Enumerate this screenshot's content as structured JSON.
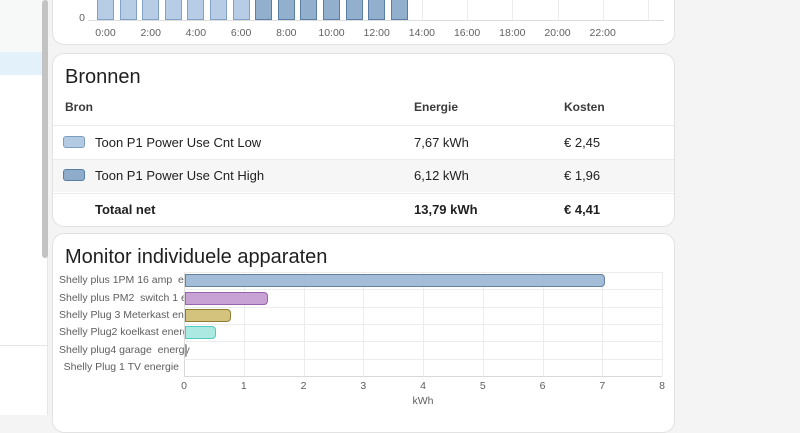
{
  "sidebar": {
    "scrollbar": true
  },
  "hourly_chart": {
    "chart_data": {
      "type": "bar",
      "note": "hourly energy usage, bars clipped at top of viewport",
      "x_tick_labels": [
        "0:00",
        "2:00",
        "4:00",
        "6:00",
        "8:00",
        "10:00",
        "12:00",
        "14:00",
        "16:00",
        "18:00",
        "20:00",
        "22:00"
      ],
      "y_tick_label": "0",
      "bars": [
        {
          "hour": "0:00",
          "tariff": "low"
        },
        {
          "hour": "1:00",
          "tariff": "low"
        },
        {
          "hour": "2:00",
          "tariff": "low"
        },
        {
          "hour": "3:00",
          "tariff": "low"
        },
        {
          "hour": "4:00",
          "tariff": "low"
        },
        {
          "hour": "5:00",
          "tariff": "low"
        },
        {
          "hour": "6:00",
          "tariff": "low"
        },
        {
          "hour": "7:00",
          "tariff": "high"
        },
        {
          "hour": "8:00",
          "tariff": "high"
        },
        {
          "hour": "9:00",
          "tariff": "high"
        },
        {
          "hour": "10:00",
          "tariff": "high"
        },
        {
          "hour": "11:00",
          "tariff": "high"
        },
        {
          "hour": "12:00",
          "tariff": "high"
        },
        {
          "hour": "13:00",
          "tariff": "high"
        }
      ],
      "colors": {
        "low": {
          "fill": "#b6cde5",
          "border": "#81a2c6"
        },
        "high": {
          "fill": "#92afcd",
          "border": "#5a7ea6"
        }
      }
    }
  },
  "sources_card": {
    "title": "Bronnen",
    "columns": {
      "bron": "Bron",
      "energie": "Energie",
      "kosten": "Kosten"
    },
    "rows": [
      {
        "label": "Toon P1 Power Use Cnt Low",
        "energy": "7,67 kWh",
        "cost": "€ 2,45",
        "swatch": "low",
        "total": false,
        "zebra": false
      },
      {
        "label": "Toon P1 Power Use Cnt High",
        "energy": "6,12 kWh",
        "cost": "€ 1,96",
        "swatch": "high",
        "total": false,
        "zebra": true
      },
      {
        "label": "Totaal net",
        "energy": "13,79 kWh",
        "cost": "€ 4,41",
        "swatch": null,
        "total": true,
        "zebra": false
      }
    ],
    "swatch_colors": {
      "low": {
        "fill": "#b2cbe3",
        "border": "#7b9dc1"
      },
      "high": {
        "fill": "#8fadca",
        "border": "#5a7fa5"
      }
    },
    "zebra_bg": "#f6f6f7"
  },
  "devices_card": {
    "title": "Monitor individuele apparaten",
    "chart_data": {
      "type": "bar",
      "orientation": "horizontal",
      "categories": [
        "Shelly plus 1PM 16 amp  energie",
        "Shelly plus PM2  switch 1 energie",
        "Shelly Plug 3 Meterkast energy",
        "Shelly Plug2 koelkast energie",
        "Shelly plug4 garage  energy",
        "Shelly Plug 1 TV energie"
      ],
      "values": [
        7.05,
        1.4,
        0.78,
        0.53,
        0.02,
        0
      ],
      "xlabel": "kWh",
      "xlim": [
        0,
        8
      ],
      "x_tick_labels": [
        "0",
        "1",
        "2",
        "3",
        "4",
        "5",
        "6",
        "7",
        "8"
      ],
      "grid": true,
      "bar_colors": [
        {
          "fill": "#a3bcd7",
          "border": "#66809f"
        },
        {
          "fill": "#c8a1d5",
          "border": "#9a63ad"
        },
        {
          "fill": "#d4c37c",
          "border": "#8e7c34"
        },
        {
          "fill": "#ace9e2",
          "border": "#50cbbe"
        },
        {
          "fill": "#c9c9c9",
          "border": "#9e9e9e"
        },
        {
          "fill": "#ffffff",
          "border": "#ffffff"
        }
      ]
    }
  }
}
